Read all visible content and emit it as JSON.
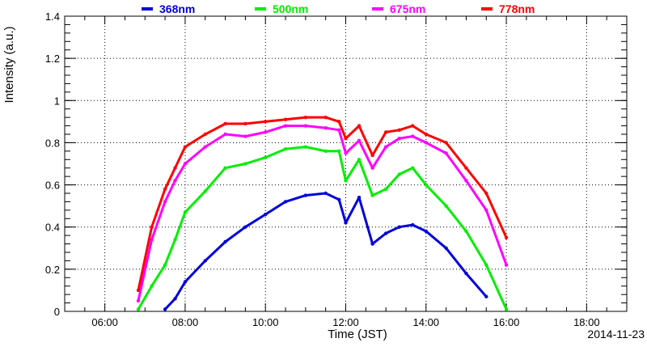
{
  "chart_data": {
    "type": "scatter",
    "xlabel": "Time (JST)",
    "ylabel": "Intensity (a.u.)",
    "annotation": "2014-11-23",
    "xlim": [
      "05:00",
      "19:00"
    ],
    "ylim": [
      0,
      1.4
    ],
    "x_ticks": [
      "06:00",
      "08:00",
      "10:00",
      "12:00",
      "14:00",
      "16:00",
      "18:00"
    ],
    "y_ticks": [
      "0",
      "0.2",
      "0.4",
      "0.6",
      "0.8",
      "1",
      "1.2",
      "1.4"
    ],
    "grid": true,
    "legend_position": "top",
    "x": [
      "06:50",
      "07:10",
      "07:30",
      "07:45",
      "08:00",
      "08:30",
      "09:00",
      "09:30",
      "10:00",
      "10:30",
      "11:00",
      "11:30",
      "11:50",
      "12:00",
      "12:20",
      "12:40",
      "13:00",
      "13:20",
      "13:40",
      "14:00",
      "14:30",
      "15:00",
      "15:30",
      "16:00"
    ],
    "series": [
      {
        "name": "368nm",
        "color": "#0000dd",
        "values": [
          null,
          null,
          0.01,
          0.06,
          0.14,
          0.24,
          0.33,
          0.4,
          0.46,
          0.52,
          0.55,
          0.56,
          0.53,
          0.42,
          0.54,
          0.32,
          0.37,
          0.4,
          0.41,
          0.38,
          0.3,
          0.18,
          0.07,
          null
        ]
      },
      {
        "name": "500nm",
        "color": "#00ee00",
        "values": [
          0.01,
          0.12,
          0.22,
          0.34,
          0.47,
          0.57,
          0.68,
          0.7,
          0.73,
          0.77,
          0.78,
          0.76,
          0.76,
          0.62,
          0.72,
          0.55,
          0.58,
          0.65,
          0.68,
          0.6,
          0.5,
          0.38,
          0.22,
          0.01
        ]
      },
      {
        "name": "675nm",
        "color": "#ff00ff",
        "values": [
          0.05,
          0.34,
          0.52,
          0.62,
          0.7,
          0.78,
          0.84,
          0.83,
          0.85,
          0.88,
          0.88,
          0.87,
          0.86,
          0.75,
          0.81,
          0.68,
          0.78,
          0.82,
          0.83,
          0.8,
          0.75,
          0.62,
          0.48,
          0.22
        ]
      },
      {
        "name": "778nm",
        "color": "#ff0000",
        "values": [
          0.1,
          0.4,
          0.58,
          0.68,
          0.78,
          0.84,
          0.89,
          0.89,
          0.9,
          0.91,
          0.92,
          0.92,
          0.9,
          0.82,
          0.88,
          0.74,
          0.85,
          0.86,
          0.88,
          0.84,
          0.8,
          0.68,
          0.56,
          0.35
        ]
      }
    ]
  }
}
